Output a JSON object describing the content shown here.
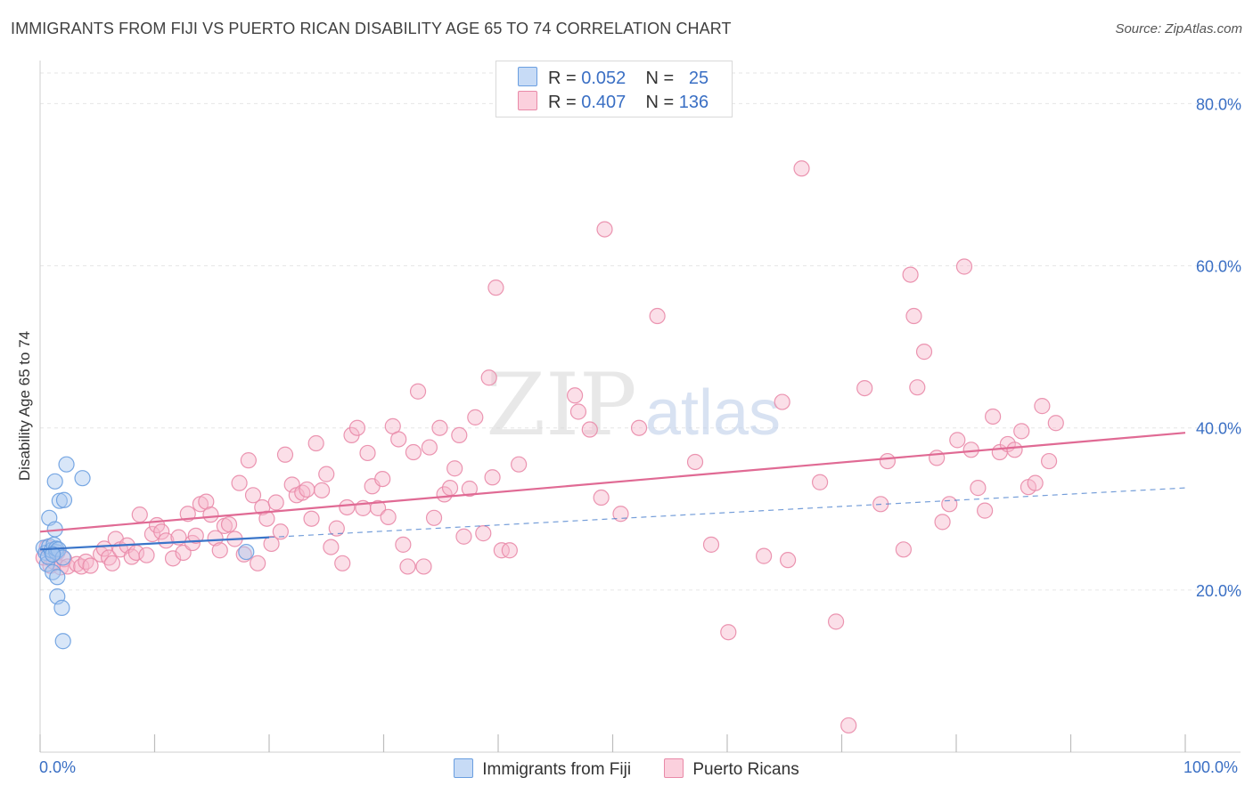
{
  "title": "IMMIGRANTS FROM FIJI VS PUERTO RICAN DISABILITY AGE 65 TO 74 CORRELATION CHART",
  "source": "Source: ZipAtlas.com",
  "watermark": {
    "zip": "ZIP",
    "atlas": "atlas"
  },
  "colors": {
    "fiji_fill": "#a9c8f0",
    "fiji_stroke": "#6a9ee0",
    "fiji_line": "#3a75c9",
    "pr_fill": "#f6b8cb",
    "pr_stroke": "#e98aa8",
    "pr_line": "#e06a94",
    "axis_label": "#3a6fc4",
    "grid": "#e6e6e6"
  },
  "legend": {
    "rows": [
      {
        "r_label": "R =",
        "r_value": "0.052",
        "n_label": "N =",
        "n_value": "25"
      },
      {
        "r_label": "R =",
        "r_value": "0.407",
        "n_label": "N =",
        "n_value": "136"
      }
    ]
  },
  "chart_data": {
    "type": "scatter",
    "title": "IMMIGRANTS FROM FIJI VS PUERTO RICAN DISABILITY AGE 65 TO 74 CORRELATION CHART",
    "xlabel": "",
    "ylabel": "Disability Age 65 to 74",
    "xlim": [
      0,
      100
    ],
    "ylim": [
      0,
      84
    ],
    "x_tick_labels": [
      "0.0%",
      "100.0%"
    ],
    "y_ticks": [
      20,
      40,
      60,
      80
    ],
    "y_tick_labels": [
      "20.0%",
      "40.0%",
      "60.0%",
      "80.0%"
    ],
    "grid": true,
    "legend_position": "bottom",
    "series": [
      {
        "name": "Immigrants from Fiji",
        "r": 0.052,
        "n": 25,
        "trend": {
          "solid": [
            [
              0,
              25.0
            ],
            [
              20,
              26.5
            ]
          ],
          "dashed": [
            [
              20,
              26.5
            ],
            [
              100,
              32.6
            ]
          ]
        },
        "points": [
          [
            0.3,
            25.2
          ],
          [
            0.5,
            24.6
          ],
          [
            0.6,
            23.2
          ],
          [
            0.7,
            24.1
          ],
          [
            0.8,
            25.4
          ],
          [
            0.8,
            28.9
          ],
          [
            1.0,
            24.9
          ],
          [
            1.1,
            22.2
          ],
          [
            1.2,
            25.6
          ],
          [
            1.3,
            27.5
          ],
          [
            1.3,
            33.4
          ],
          [
            1.4,
            24.7
          ],
          [
            1.5,
            19.2
          ],
          [
            1.5,
            21.6
          ],
          [
            1.7,
            31.0
          ],
          [
            1.9,
            17.8
          ],
          [
            1.4,
            25.1
          ],
          [
            1.6,
            25.0
          ],
          [
            2.0,
            13.7
          ],
          [
            2.1,
            31.1
          ],
          [
            2.3,
            35.5
          ],
          [
            2.0,
            24.0
          ],
          [
            3.7,
            33.8
          ],
          [
            18.0,
            24.7
          ],
          [
            1.1,
            24.4
          ]
        ]
      },
      {
        "name": "Puerto Ricans",
        "r": 0.407,
        "n": 136,
        "trend": {
          "solid": [
            [
              0,
              27.2
            ],
            [
              100,
              39.4
            ]
          ]
        },
        "points": [
          [
            0.3,
            24.0
          ],
          [
            0.6,
            25.3
          ],
          [
            0.9,
            23.0
          ],
          [
            1.2,
            23.5
          ],
          [
            1.5,
            24.6
          ],
          [
            1.8,
            22.8
          ],
          [
            2.1,
            23.8
          ],
          [
            2.4,
            22.9
          ],
          [
            3.2,
            23.2
          ],
          [
            3.6,
            22.9
          ],
          [
            4.0,
            23.5
          ],
          [
            4.4,
            23.0
          ],
          [
            5.3,
            24.4
          ],
          [
            5.6,
            25.1
          ],
          [
            6.0,
            24.0
          ],
          [
            6.3,
            23.3
          ],
          [
            6.6,
            26.3
          ],
          [
            7.0,
            25.0
          ],
          [
            7.6,
            25.5
          ],
          [
            8.0,
            24.1
          ],
          [
            8.4,
            24.6
          ],
          [
            8.7,
            29.3
          ],
          [
            9.3,
            24.3
          ],
          [
            9.8,
            26.9
          ],
          [
            10.2,
            28.0
          ],
          [
            10.6,
            27.2
          ],
          [
            11.0,
            26.1
          ],
          [
            11.6,
            23.9
          ],
          [
            12.1,
            26.5
          ],
          [
            12.5,
            24.6
          ],
          [
            12.9,
            29.4
          ],
          [
            13.3,
            25.8
          ],
          [
            13.6,
            26.7
          ],
          [
            14.0,
            30.6
          ],
          [
            14.5,
            30.9
          ],
          [
            14.9,
            29.3
          ],
          [
            15.3,
            26.4
          ],
          [
            15.7,
            24.9
          ],
          [
            16.1,
            27.9
          ],
          [
            16.5,
            28.1
          ],
          [
            17.0,
            26.3
          ],
          [
            17.4,
            33.2
          ],
          [
            17.8,
            24.4
          ],
          [
            18.2,
            36.0
          ],
          [
            18.6,
            31.7
          ],
          [
            19.0,
            23.3
          ],
          [
            19.4,
            30.2
          ],
          [
            19.8,
            28.8
          ],
          [
            20.2,
            25.7
          ],
          [
            20.6,
            30.8
          ],
          [
            21.0,
            27.2
          ],
          [
            21.4,
            36.7
          ],
          [
            22.0,
            33.0
          ],
          [
            22.4,
            31.7
          ],
          [
            22.9,
            32.0
          ],
          [
            23.3,
            32.4
          ],
          [
            23.7,
            28.8
          ],
          [
            24.1,
            38.1
          ],
          [
            24.6,
            32.3
          ],
          [
            25.0,
            34.3
          ],
          [
            25.4,
            25.3
          ],
          [
            25.9,
            27.6
          ],
          [
            26.4,
            23.3
          ],
          [
            26.8,
            30.2
          ],
          [
            27.2,
            39.1
          ],
          [
            27.7,
            40.0
          ],
          [
            28.2,
            30.1
          ],
          [
            28.6,
            36.9
          ],
          [
            29.0,
            32.8
          ],
          [
            29.5,
            30.1
          ],
          [
            29.9,
            33.7
          ],
          [
            30.4,
            29.0
          ],
          [
            30.8,
            40.2
          ],
          [
            31.3,
            38.6
          ],
          [
            31.7,
            25.6
          ],
          [
            32.1,
            22.9
          ],
          [
            32.6,
            37.0
          ],
          [
            33.0,
            44.5
          ],
          [
            33.5,
            22.9
          ],
          [
            34.0,
            37.6
          ],
          [
            34.4,
            28.9
          ],
          [
            34.9,
            40.0
          ],
          [
            35.3,
            31.8
          ],
          [
            35.8,
            32.6
          ],
          [
            36.2,
            35.0
          ],
          [
            36.6,
            39.1
          ],
          [
            37.0,
            26.6
          ],
          [
            37.5,
            32.5
          ],
          [
            38.0,
            41.3
          ],
          [
            38.7,
            27.0
          ],
          [
            39.2,
            46.2
          ],
          [
            39.8,
            57.3
          ],
          [
            40.3,
            24.9
          ],
          [
            41.0,
            24.9
          ],
          [
            41.8,
            35.5
          ],
          [
            49.0,
            31.4
          ],
          [
            50.7,
            29.4
          ],
          [
            52.3,
            40.0
          ],
          [
            57.2,
            35.8
          ],
          [
            58.6,
            25.6
          ],
          [
            60.1,
            14.8
          ],
          [
            63.2,
            24.2
          ],
          [
            64.8,
            43.2
          ],
          [
            65.3,
            23.7
          ],
          [
            68.1,
            33.3
          ],
          [
            69.5,
            16.1
          ],
          [
            72.0,
            44.9
          ],
          [
            73.4,
            30.6
          ],
          [
            74.0,
            35.9
          ],
          [
            75.4,
            25.0
          ],
          [
            76.0,
            58.9
          ],
          [
            76.3,
            53.8
          ],
          [
            76.6,
            45.0
          ],
          [
            77.2,
            49.4
          ],
          [
            78.3,
            36.3
          ],
          [
            78.8,
            28.4
          ],
          [
            79.4,
            30.6
          ],
          [
            80.1,
            38.5
          ],
          [
            80.7,
            59.9
          ],
          [
            81.3,
            37.3
          ],
          [
            81.9,
            32.6
          ],
          [
            82.5,
            29.8
          ],
          [
            83.2,
            41.4
          ],
          [
            83.8,
            37.0
          ],
          [
            84.5,
            38.0
          ],
          [
            85.1,
            37.3
          ],
          [
            85.7,
            39.6
          ],
          [
            86.3,
            32.7
          ],
          [
            86.9,
            33.2
          ],
          [
            87.5,
            42.7
          ],
          [
            88.1,
            35.9
          ],
          [
            88.7,
            40.6
          ],
          [
            70.6,
            3.3
          ],
          [
            66.5,
            72.0
          ],
          [
            49.3,
            64.5
          ],
          [
            46.7,
            44.0
          ],
          [
            47.0,
            42.0
          ],
          [
            39.5,
            33.9
          ],
          [
            53.9,
            53.8
          ],
          [
            48.0,
            39.8
          ]
        ]
      }
    ]
  }
}
